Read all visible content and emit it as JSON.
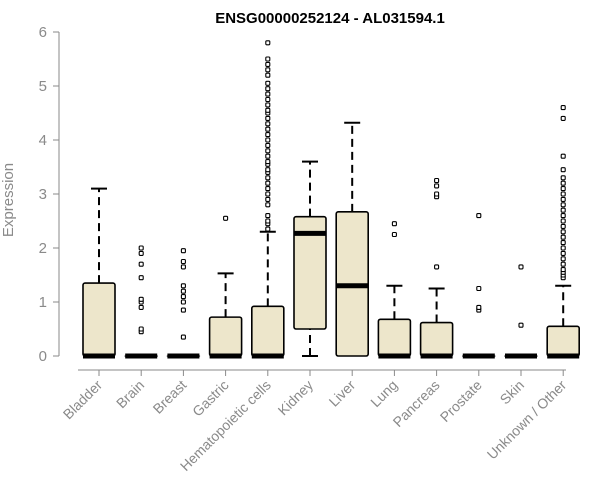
{
  "chart_data": {
    "type": "box",
    "title": "ENSG00000252124 - AL031594.1",
    "xlabel": "",
    "ylabel": "Expression",
    "ylim": [
      0,
      6
    ],
    "yticks": [
      0,
      1,
      2,
      3,
      4,
      5,
      6
    ],
    "box_fill": "#ede6cb",
    "line_color": "#000000",
    "axis_color": "#8a8a8a",
    "categories": [
      "Bladder",
      "Brain",
      "Breast",
      "Gastric",
      "Hematopoietic cells",
      "Kidney",
      "Liver",
      "Lung",
      "Pancreas",
      "Prostate",
      "Skin",
      "Unknown / Other"
    ],
    "boxes": [
      {
        "label": "Bladder",
        "min": 0,
        "q1": 0,
        "median": 0,
        "q3": 1.35,
        "max": 3.1,
        "outliers": []
      },
      {
        "label": "Brain",
        "min": 0,
        "q1": 0,
        "median": 0,
        "q3": 0,
        "max": 0,
        "outliers": [
          0.45,
          0.5,
          0.9,
          1.0,
          1.05,
          1.45,
          1.7,
          1.9,
          2.0
        ]
      },
      {
        "label": "Breast",
        "min": 0,
        "q1": 0,
        "median": 0,
        "q3": 0,
        "max": 0,
        "outliers": [
          0.35,
          0.85,
          1.0,
          1.1,
          1.2,
          1.3,
          1.65,
          1.75,
          1.95
        ]
      },
      {
        "label": "Gastric",
        "min": 0,
        "q1": 0,
        "median": 0,
        "q3": 0.72,
        "max": 1.53,
        "outliers": [
          2.55
        ]
      },
      {
        "label": "Hematopoietic cells",
        "min": 0,
        "q1": 0,
        "median": 0,
        "q3": 0.92,
        "max": 2.3,
        "outliers": [
          2.35,
          2.45,
          2.5,
          2.6,
          2.8,
          2.9,
          3.0,
          3.1,
          3.2,
          3.3,
          3.4,
          3.45,
          3.55,
          3.6,
          3.7,
          3.8,
          3.9,
          4.0,
          4.1,
          4.2,
          4.3,
          4.4,
          4.5,
          4.55,
          4.65,
          4.75,
          4.85,
          4.95,
          5.05,
          5.2,
          5.3,
          5.4,
          5.5,
          5.8
        ]
      },
      {
        "label": "Kidney",
        "min": 0,
        "q1": 0.5,
        "median": 2.27,
        "q3": 2.58,
        "max": 3.6,
        "outliers": []
      },
      {
        "label": "Liver",
        "min": 0,
        "q1": 0,
        "median": 1.3,
        "q3": 2.67,
        "max": 4.32,
        "outliers": []
      },
      {
        "label": "Lung",
        "min": 0,
        "q1": 0,
        "median": 0,
        "q3": 0.68,
        "max": 1.3,
        "outliers": [
          2.25,
          2.45
        ]
      },
      {
        "label": "Pancreas",
        "min": 0,
        "q1": 0,
        "median": 0,
        "q3": 0.62,
        "max": 1.25,
        "outliers": [
          1.65,
          2.95,
          3.0,
          3.15,
          3.25
        ]
      },
      {
        "label": "Prostate",
        "min": 0,
        "q1": 0,
        "median": 0,
        "q3": 0,
        "max": 0,
        "outliers": [
          0.85,
          0.9,
          1.25,
          2.6
        ]
      },
      {
        "label": "Skin",
        "min": 0,
        "q1": 0,
        "median": 0,
        "q3": 0,
        "max": 0,
        "outliers": [
          0.57,
          1.65
        ]
      },
      {
        "label": "Unknown / Other",
        "min": 0,
        "q1": 0,
        "median": 0,
        "q3": 0.55,
        "max": 1.3,
        "outliers": [
          1.45,
          1.5,
          1.55,
          1.6,
          1.7,
          1.8,
          1.9,
          2.0,
          2.1,
          2.2,
          2.3,
          2.4,
          2.5,
          2.6,
          2.7,
          2.8,
          2.9,
          3.0,
          3.1,
          3.2,
          3.3,
          3.45,
          3.7,
          4.4,
          4.6
        ]
      }
    ]
  }
}
